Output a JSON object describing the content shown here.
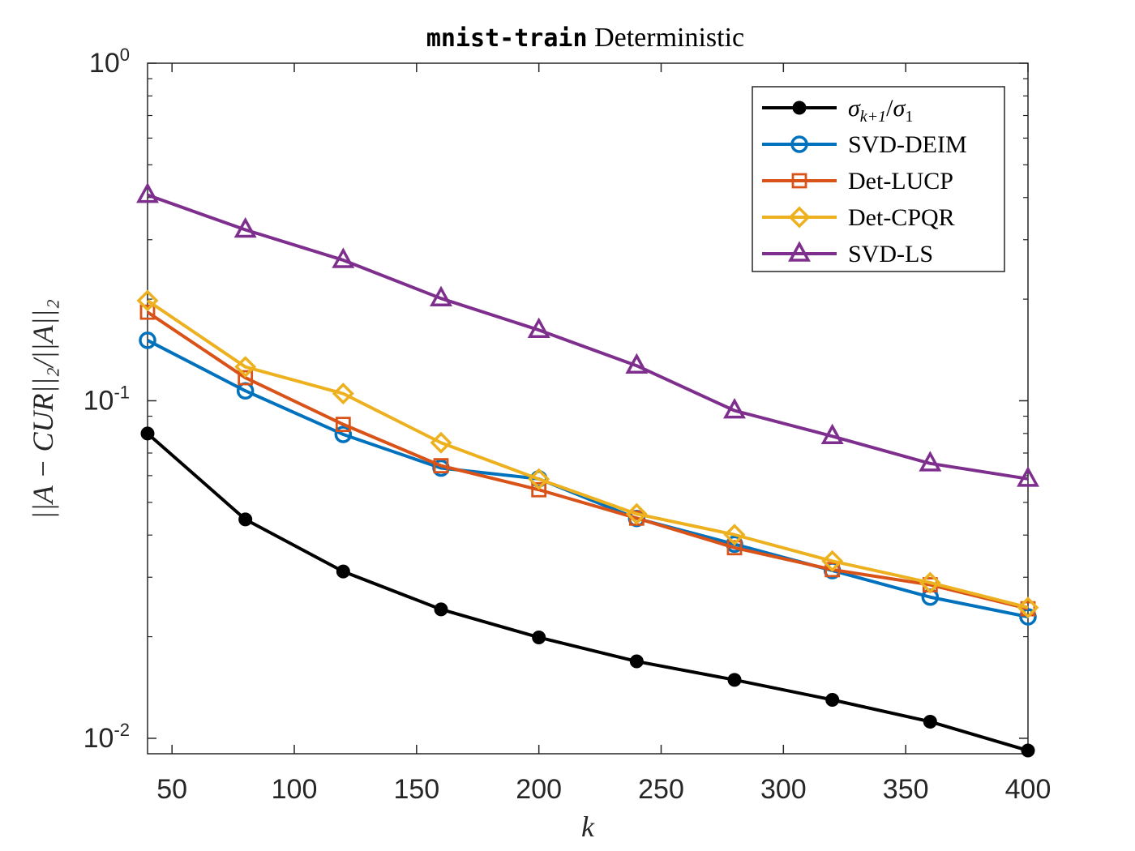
{
  "chart_data": {
    "type": "line",
    "title_mono": "mnist-train",
    "title_rest": " Deterministic",
    "xlabel": "k",
    "ylabel": "||A − CUR||₂/||A||₂",
    "yscale": "log",
    "xlim": [
      40,
      400
    ],
    "ylim": [
      0.009,
      1
    ],
    "x_ticks": [
      50,
      100,
      150,
      200,
      250,
      300,
      350,
      400
    ],
    "y_ticks": [
      {
        "value": 1,
        "base": "10",
        "exp": "0"
      },
      {
        "value": 0.1,
        "base": "10",
        "exp": "-1"
      },
      {
        "value": 0.01,
        "base": "10",
        "exp": "-2"
      }
    ],
    "grid": false,
    "legend_position": "top-right",
    "x": [
      40,
      80,
      120,
      160,
      200,
      240,
      280,
      320,
      360,
      400
    ],
    "series": [
      {
        "name": "σk+1/σ1",
        "color": "#000000",
        "marker": "filled-circle",
        "values": [
          0.08,
          0.0445,
          0.0312,
          0.0241,
          0.0199,
          0.0169,
          0.0149,
          0.013,
          0.0112,
          0.0092
        ]
      },
      {
        "name": "SVD-DEIM",
        "color": "#0072BD",
        "marker": "circle",
        "values": [
          0.151,
          0.107,
          0.0795,
          0.0632,
          0.0587,
          0.0448,
          0.0376,
          0.0314,
          0.0262,
          0.0229
        ]
      },
      {
        "name": "Det-LUCP",
        "color": "#D95319",
        "marker": "square",
        "values": [
          0.183,
          0.117,
          0.0851,
          0.0642,
          0.0545,
          0.0449,
          0.0367,
          0.0316,
          0.0285,
          0.0242
        ]
      },
      {
        "name": "Det-CPQR",
        "color": "#EDB120",
        "marker": "diamond",
        "values": [
          0.198,
          0.126,
          0.105,
          0.0751,
          0.0586,
          0.0462,
          0.0401,
          0.0335,
          0.0289,
          0.0244
        ]
      },
      {
        "name": "SVD-LS",
        "color": "#7E2F8E",
        "marker": "triangle",
        "values": [
          0.407,
          0.321,
          0.261,
          0.201,
          0.162,
          0.127,
          0.0935,
          0.0785,
          0.0652,
          0.0587
        ]
      }
    ]
  }
}
